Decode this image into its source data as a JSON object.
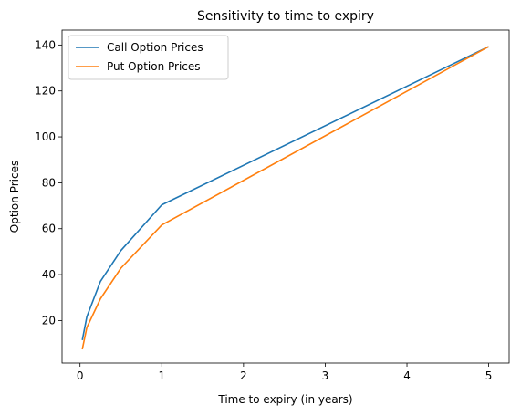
{
  "chart_data": {
    "type": "line",
    "title": "Sensitivity to time to expiry",
    "xlabel": "Time to expiry (in years)",
    "ylabel": "Option Prices",
    "xlim": [
      -0.22,
      5.25
    ],
    "ylim": [
      1.5,
      146.5
    ],
    "xticks": [
      0,
      1,
      2,
      3,
      4,
      5
    ],
    "yticks": [
      20,
      40,
      60,
      80,
      100,
      120,
      140
    ],
    "grid": false,
    "legend_position": "upper-left",
    "series": [
      {
        "name": "Call Option Prices",
        "color": "#1f77b4",
        "x": [
          0.0274,
          0.0833,
          0.25,
          0.5,
          1,
          5
        ],
        "y": [
          11.5,
          21.7,
          37.1,
          50.5,
          70.4,
          139.3
        ]
      },
      {
        "name": "Put Option Prices",
        "color": "#ff7f0e",
        "x": [
          0.0274,
          0.0833,
          0.25,
          0.5,
          1,
          5
        ],
        "y": [
          7.5,
          17.0,
          29.5,
          42.8,
          61.6,
          139.3
        ]
      }
    ]
  }
}
